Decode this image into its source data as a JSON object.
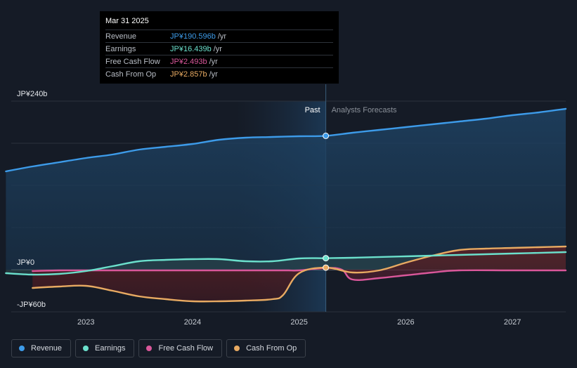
{
  "tooltip": {
    "date": "Mar 31 2025",
    "rows": [
      {
        "label": "Revenue",
        "value": "JP¥190.596b",
        "unit": "/yr",
        "color": "#3d9be9"
      },
      {
        "label": "Earnings",
        "value": "JP¥16.439b",
        "unit": "/yr",
        "color": "#6be0cc"
      },
      {
        "label": "Free Cash Flow",
        "value": "JP¥2.493b",
        "unit": "/yr",
        "color": "#d9579a"
      },
      {
        "label": "Cash From Op",
        "value": "JP¥2.857b",
        "unit": "/yr",
        "color": "#e8aa62"
      }
    ]
  },
  "chart_data": {
    "type": "line",
    "ylim": [
      -60,
      240
    ],
    "y_ticks": [
      {
        "value": 240,
        "label": "JP¥240b"
      },
      {
        "value": 0,
        "label": "JP¥0"
      },
      {
        "value": -60,
        "label": "-JP¥60b"
      }
    ],
    "xlim": [
      2022.3,
      2027.5
    ],
    "x_ticks": [
      {
        "value": 2023,
        "label": "2023"
      },
      {
        "value": 2024,
        "label": "2024"
      },
      {
        "value": 2025,
        "label": "2025"
      },
      {
        "value": 2026,
        "label": "2026"
      },
      {
        "value": 2027,
        "label": "2027"
      }
    ],
    "divider_x": 2025.25,
    "past_label": "Past",
    "forecast_label": "Analysts Forecasts",
    "grid": true,
    "series": [
      {
        "name": "Revenue",
        "color": "#3d9be9",
        "x": [
          2022.25,
          2022.5,
          2022.75,
          2023.0,
          2023.25,
          2023.5,
          2023.75,
          2024.0,
          2024.25,
          2024.5,
          2024.75,
          2025.0,
          2025.25,
          2025.5,
          2025.75,
          2026.0,
          2026.25,
          2026.5,
          2026.75,
          2027.0,
          2027.25,
          2027.5
        ],
        "y": [
          140,
          147,
          153,
          159,
          164,
          171,
          175,
          179,
          185,
          188,
          189,
          190,
          190.6,
          195,
          199,
          203,
          207,
          211,
          215,
          220,
          224,
          229
        ]
      },
      {
        "name": "Earnings",
        "color": "#6be0cc",
        "x": [
          2022.25,
          2022.5,
          2022.75,
          2023.0,
          2023.25,
          2023.5,
          2023.75,
          2024.0,
          2024.25,
          2024.5,
          2024.75,
          2025.0,
          2025.25,
          2025.5,
          2026.0,
          2026.5,
          2027.0,
          2027.5
        ],
        "y": [
          -5,
          -7,
          -6,
          -2,
          5,
          12,
          14,
          15,
          15,
          12,
          12,
          16,
          16.4,
          17,
          19,
          21,
          23,
          25
        ]
      },
      {
        "name": "Free Cash Flow",
        "color": "#d9579a",
        "x": [
          2022.5,
          2022.75,
          2023.0,
          2023.25,
          2023.5,
          2023.75,
          2024.0,
          2024.25,
          2024.5,
          2024.75,
          2024.9,
          2025.0,
          2025.25,
          2025.4,
          2025.5,
          2025.75,
          2026.0,
          2026.25,
          2026.5,
          2027.0,
          2027.5
        ],
        "y": [
          -2,
          -1,
          -1,
          -1,
          -1,
          -1,
          -1,
          -1,
          -1,
          -1,
          -1,
          -1,
          2.5,
          0,
          -14,
          -12,
          -8,
          -4,
          -1,
          -1,
          -1
        ]
      },
      {
        "name": "Cash From Op",
        "color": "#e8aa62",
        "x": [
          2022.5,
          2022.75,
          2023.0,
          2023.25,
          2023.5,
          2023.75,
          2024.0,
          2024.25,
          2024.5,
          2024.75,
          2024.85,
          2025.0,
          2025.25,
          2025.5,
          2025.75,
          2026.0,
          2026.25,
          2026.5,
          2026.75,
          2027.0,
          2027.25,
          2027.5
        ],
        "y": [
          -26,
          -24,
          -23,
          -30,
          -38,
          -42,
          -45,
          -45,
          -44,
          -42,
          -36,
          -5,
          2.9,
          -4,
          -1,
          10,
          20,
          28,
          30,
          31,
          32,
          33
        ]
      }
    ]
  },
  "legend": [
    {
      "label": "Revenue",
      "color": "#3d9be9"
    },
    {
      "label": "Earnings",
      "color": "#6be0cc"
    },
    {
      "label": "Free Cash Flow",
      "color": "#d9579a"
    },
    {
      "label": "Cash From Op",
      "color": "#e8aa62"
    }
  ]
}
